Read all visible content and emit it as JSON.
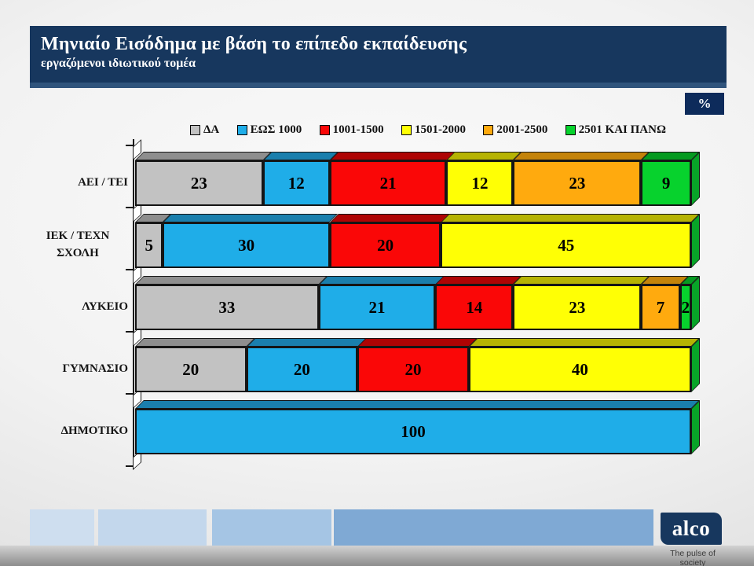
{
  "slide": {
    "title": "Μηνιαίο Εισόδημα με βάση το επίπεδο εκπαίδευσης",
    "subtitle": "εργαζόμενοι ιδιωτικού τομέα",
    "unit_badge": "%"
  },
  "chart_data": {
    "type": "bar",
    "orientation": "horizontal-stacked-100",
    "title": "Μηνιαίο Εισόδημα με βάση το επίπεδο εκπαίδευσης",
    "unit": "%",
    "xlim": [
      0,
      100
    ],
    "legend_position": "top",
    "categories": [
      "ΑΕΙ / ΤΕΙ",
      "ΙΕΚ / ΤΕΧΝ ΣΧΟΛΗ",
      "ΛΥΚΕΙΟ",
      "ΓΥΜΝΑΣΙΟ",
      "ΔΗΜΟΤΙΚΟ"
    ],
    "series": [
      {
        "name": "ΔΑ",
        "color": "#C2C2C2",
        "color_dark": "#8E8E8E",
        "values": [
          23,
          5,
          33,
          20,
          0
        ]
      },
      {
        "name": "ΕΩΣ 1000",
        "color": "#1FADE8",
        "color_dark": "#1A7FAD",
        "values": [
          12,
          30,
          21,
          20,
          100
        ]
      },
      {
        "name": "1001-1500",
        "color": "#FA0707",
        "color_dark": "#AE0404",
        "values": [
          21,
          20,
          14,
          20,
          0
        ]
      },
      {
        "name": "1501-2000",
        "color": "#FFFF05",
        "color_dark": "#B6B303",
        "values": [
          12,
          45,
          23,
          40,
          0
        ]
      },
      {
        "name": "2001-2500",
        "color": "#FFAA0E",
        "color_dark": "#C4830A",
        "values": [
          23,
          0,
          7,
          0,
          0
        ]
      },
      {
        "name": "2501 ΚΑΙ ΠΑΝΩ",
        "color": "#07D22D",
        "color_dark": "#059A20",
        "values": [
          9,
          0,
          2,
          0,
          0
        ]
      }
    ],
    "cap_color": "#08A428"
  },
  "footer": {
    "brand": "alco",
    "tagline": "The pulse of society"
  }
}
